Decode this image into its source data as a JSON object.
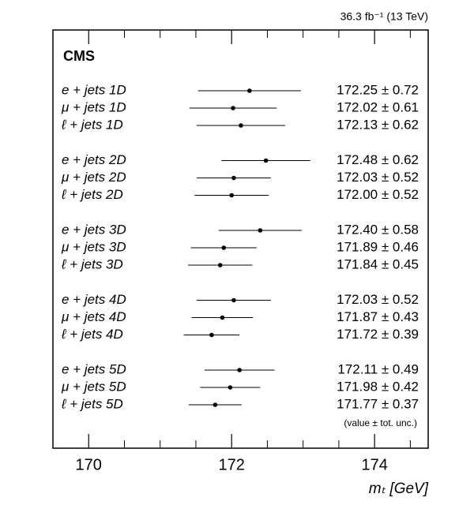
{
  "chart_data": {
    "type": "errorbar",
    "lumi_label": "36.3 fb⁻¹ (13 TeV)",
    "experiment": "CMS",
    "categories": [
      "e + jets 1D",
      "μ + jets 1D",
      "ℓ + jets 1D",
      "e + jets 2D",
      "μ + jets 2D",
      "ℓ + jets 2D",
      "e + jets 3D",
      "μ + jets 3D",
      "ℓ + jets 3D",
      "e + jets 4D",
      "μ + jets 4D",
      "ℓ + jets 4D",
      "e + jets 5D",
      "μ + jets 5D",
      "ℓ + jets 5D"
    ],
    "values": [
      172.25,
      172.02,
      172.13,
      172.48,
      172.03,
      172.0,
      172.4,
      171.89,
      171.84,
      172.03,
      171.87,
      171.72,
      172.11,
      171.98,
      171.77
    ],
    "errors": [
      0.72,
      0.61,
      0.62,
      0.62,
      0.52,
      0.52,
      0.58,
      0.46,
      0.45,
      0.52,
      0.43,
      0.39,
      0.49,
      0.42,
      0.37
    ],
    "value_labels": [
      "172.25 ± 0.72",
      "172.02 ± 0.61",
      "172.13 ± 0.62",
      "172.48 ± 0.62",
      "172.03 ± 0.52",
      "172.00 ± 0.52",
      "172.40 ± 0.58",
      "171.89 ± 0.46",
      "171.84 ± 0.45",
      "172.03 ± 0.52",
      "171.87 ± 0.43",
      "171.72 ± 0.39",
      "172.11 ± 0.49",
      "171.98 ± 0.42",
      "171.77 ± 0.37"
    ],
    "annotation": "(value ± tot. unc.)",
    "xlabel": "mₜ [GeV]",
    "xlim": [
      169.5,
      174.75
    ],
    "xticks": [
      170,
      172,
      174
    ],
    "xminorticks": [
      169.5,
      170.5,
      171,
      171.5,
      172.5,
      173,
      173.5,
      174.5
    ],
    "color": "#000000"
  }
}
